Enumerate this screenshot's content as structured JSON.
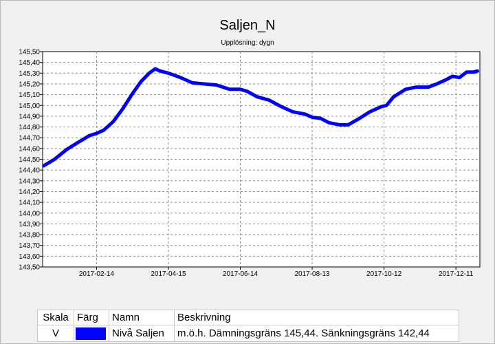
{
  "chart_data": {
    "type": "line",
    "title": "Saljen_N",
    "subtitle": "Upplösning: dygn",
    "xlabel": "",
    "ylabel": "",
    "xlim": [
      "2016-12-31",
      "2017-12-31"
    ],
    "ylim": [
      143.5,
      145.5
    ],
    "y_ticks": [
      "145,50",
      "145,40",
      "145,30",
      "145,20",
      "145,10",
      "145,00",
      "144,90",
      "144,80",
      "144,70",
      "144,60",
      "144,50",
      "144,40",
      "144,30",
      "144,20",
      "144,10",
      "144,00",
      "143,90",
      "143,80",
      "143,70",
      "143,60",
      "143,50"
    ],
    "x_ticks": [
      {
        "date": "2017-02-14",
        "label": "2017-02-14"
      },
      {
        "date": "2017-04-15",
        "label": "2017-04-15"
      },
      {
        "date": "2017-06-14",
        "label": "2017-06-14"
      },
      {
        "date": "2017-08-13",
        "label": "2017-08-13"
      },
      {
        "date": "2017-10-12",
        "label": "2017-10-12"
      },
      {
        "date": "2017-12-11",
        "label": "2017-12-11"
      }
    ],
    "grid": true,
    "series": [
      {
        "name": "Nivå Saljen",
        "color": "#0000ff",
        "points": [
          [
            "2017-01-01",
            144.44
          ],
          [
            "2017-01-10",
            144.5
          ],
          [
            "2017-01-20",
            144.59
          ],
          [
            "2017-01-30",
            144.66
          ],
          [
            "2017-02-08",
            144.72
          ],
          [
            "2017-02-14",
            144.74
          ],
          [
            "2017-02-20",
            144.77
          ],
          [
            "2017-02-28",
            144.85
          ],
          [
            "2017-03-08",
            144.97
          ],
          [
            "2017-03-16",
            145.11
          ],
          [
            "2017-03-23",
            145.22
          ],
          [
            "2017-03-30",
            145.3
          ],
          [
            "2017-04-04",
            145.34
          ],
          [
            "2017-04-08",
            145.32
          ],
          [
            "2017-04-15",
            145.3
          ],
          [
            "2017-04-25",
            145.26
          ],
          [
            "2017-05-05",
            145.21
          ],
          [
            "2017-05-15",
            145.2
          ],
          [
            "2017-05-25",
            145.19
          ],
          [
            "2017-06-05",
            145.15
          ],
          [
            "2017-06-14",
            145.15
          ],
          [
            "2017-06-20",
            145.13
          ],
          [
            "2017-06-28",
            145.08
          ],
          [
            "2017-07-08",
            145.05
          ],
          [
            "2017-07-18",
            144.99
          ],
          [
            "2017-07-28",
            144.94
          ],
          [
            "2017-08-07",
            144.92
          ],
          [
            "2017-08-13",
            144.89
          ],
          [
            "2017-08-20",
            144.88
          ],
          [
            "2017-08-27",
            144.84
          ],
          [
            "2017-09-05",
            144.82
          ],
          [
            "2017-09-12",
            144.82
          ],
          [
            "2017-09-20",
            144.87
          ],
          [
            "2017-09-30",
            144.94
          ],
          [
            "2017-10-10",
            144.99
          ],
          [
            "2017-10-14",
            145.0
          ],
          [
            "2017-10-20",
            145.08
          ],
          [
            "2017-10-30",
            145.15
          ],
          [
            "2017-11-08",
            145.17
          ],
          [
            "2017-11-18",
            145.17
          ],
          [
            "2017-11-25",
            145.2
          ],
          [
            "2017-12-03",
            145.24
          ],
          [
            "2017-12-08",
            145.27
          ],
          [
            "2017-12-14",
            145.26
          ],
          [
            "2017-12-20",
            145.31
          ],
          [
            "2017-12-26",
            145.31
          ],
          [
            "2017-12-29",
            145.32
          ]
        ]
      }
    ]
  },
  "legend": {
    "headers": {
      "scale": "Skala",
      "color": "Färg",
      "name": "Namn",
      "description": "Beskrivning"
    },
    "rows": [
      {
        "scale": "V",
        "color": "#0000ff",
        "name": "Nivå Saljen",
        "description": "m.ö.h. Dämningsgräns 145,44. Sänkningsgräns 142,44"
      }
    ]
  }
}
